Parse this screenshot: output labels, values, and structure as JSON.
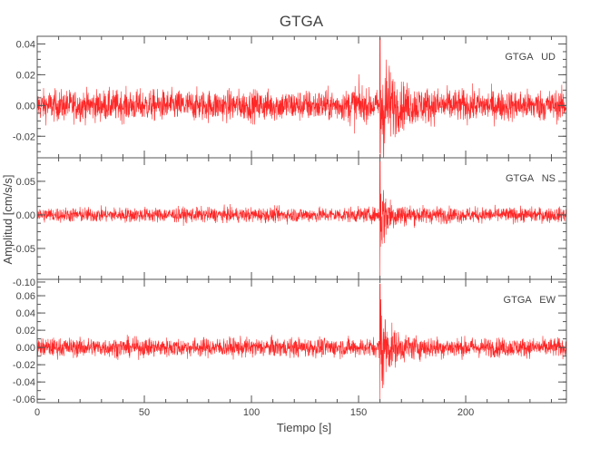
{
  "chart_data": {
    "type": "line",
    "title": "GTGA",
    "xlabel": "Tiempo [s]",
    "ylabel": "Amplitud [cm/s/s]",
    "xlim": [
      0,
      247
    ],
    "x_ticks": [
      0,
      50,
      100,
      150,
      200
    ],
    "x_tick_labels": [
      "0",
      "50",
      "100",
      "150",
      "200"
    ],
    "grid": false,
    "line_color": "#ff0000",
    "panels": [
      {
        "label": "GTGA   UD",
        "ylim": [
          -0.034,
          0.045
        ],
        "y_ticks": [
          -0.02,
          0.0,
          0.02,
          0.04
        ],
        "y_tick_labels": [
          "-0.02",
          "0.00",
          "0.02",
          "0.04"
        ],
        "y_minor_step": 0.005,
        "noise_amplitude": 0.011,
        "event_time": 160,
        "peak_max": 0.044,
        "peak_min": -0.031
      },
      {
        "label": "GTGA   NS",
        "ylim": [
          -0.096,
          0.085
        ],
        "y_ticks": [
          -0.1,
          -0.05,
          0.0,
          0.05
        ],
        "y_tick_labels": [
          "-0.10",
          "-0.05",
          "0.00",
          "0.05"
        ],
        "y_minor_step": 0.0125,
        "noise_amplitude": 0.012,
        "event_time": 160,
        "peak_max": 0.08,
        "peak_min": -0.095
      },
      {
        "label": "GTGA   EW",
        "ylim": [
          -0.064,
          0.079
        ],
        "y_ticks": [
          -0.06,
          -0.04,
          -0.02,
          0.0,
          0.02,
          0.04,
          0.06
        ],
        "y_tick_labels": [
          "-0.06",
          "-0.04",
          "-0.02",
          "0.00",
          "0.02",
          "0.04",
          "0.06"
        ],
        "y_minor_step": 0.01,
        "noise_amplitude": 0.012,
        "event_time": 160,
        "peak_max": 0.074,
        "peak_min": -0.062
      }
    ]
  }
}
